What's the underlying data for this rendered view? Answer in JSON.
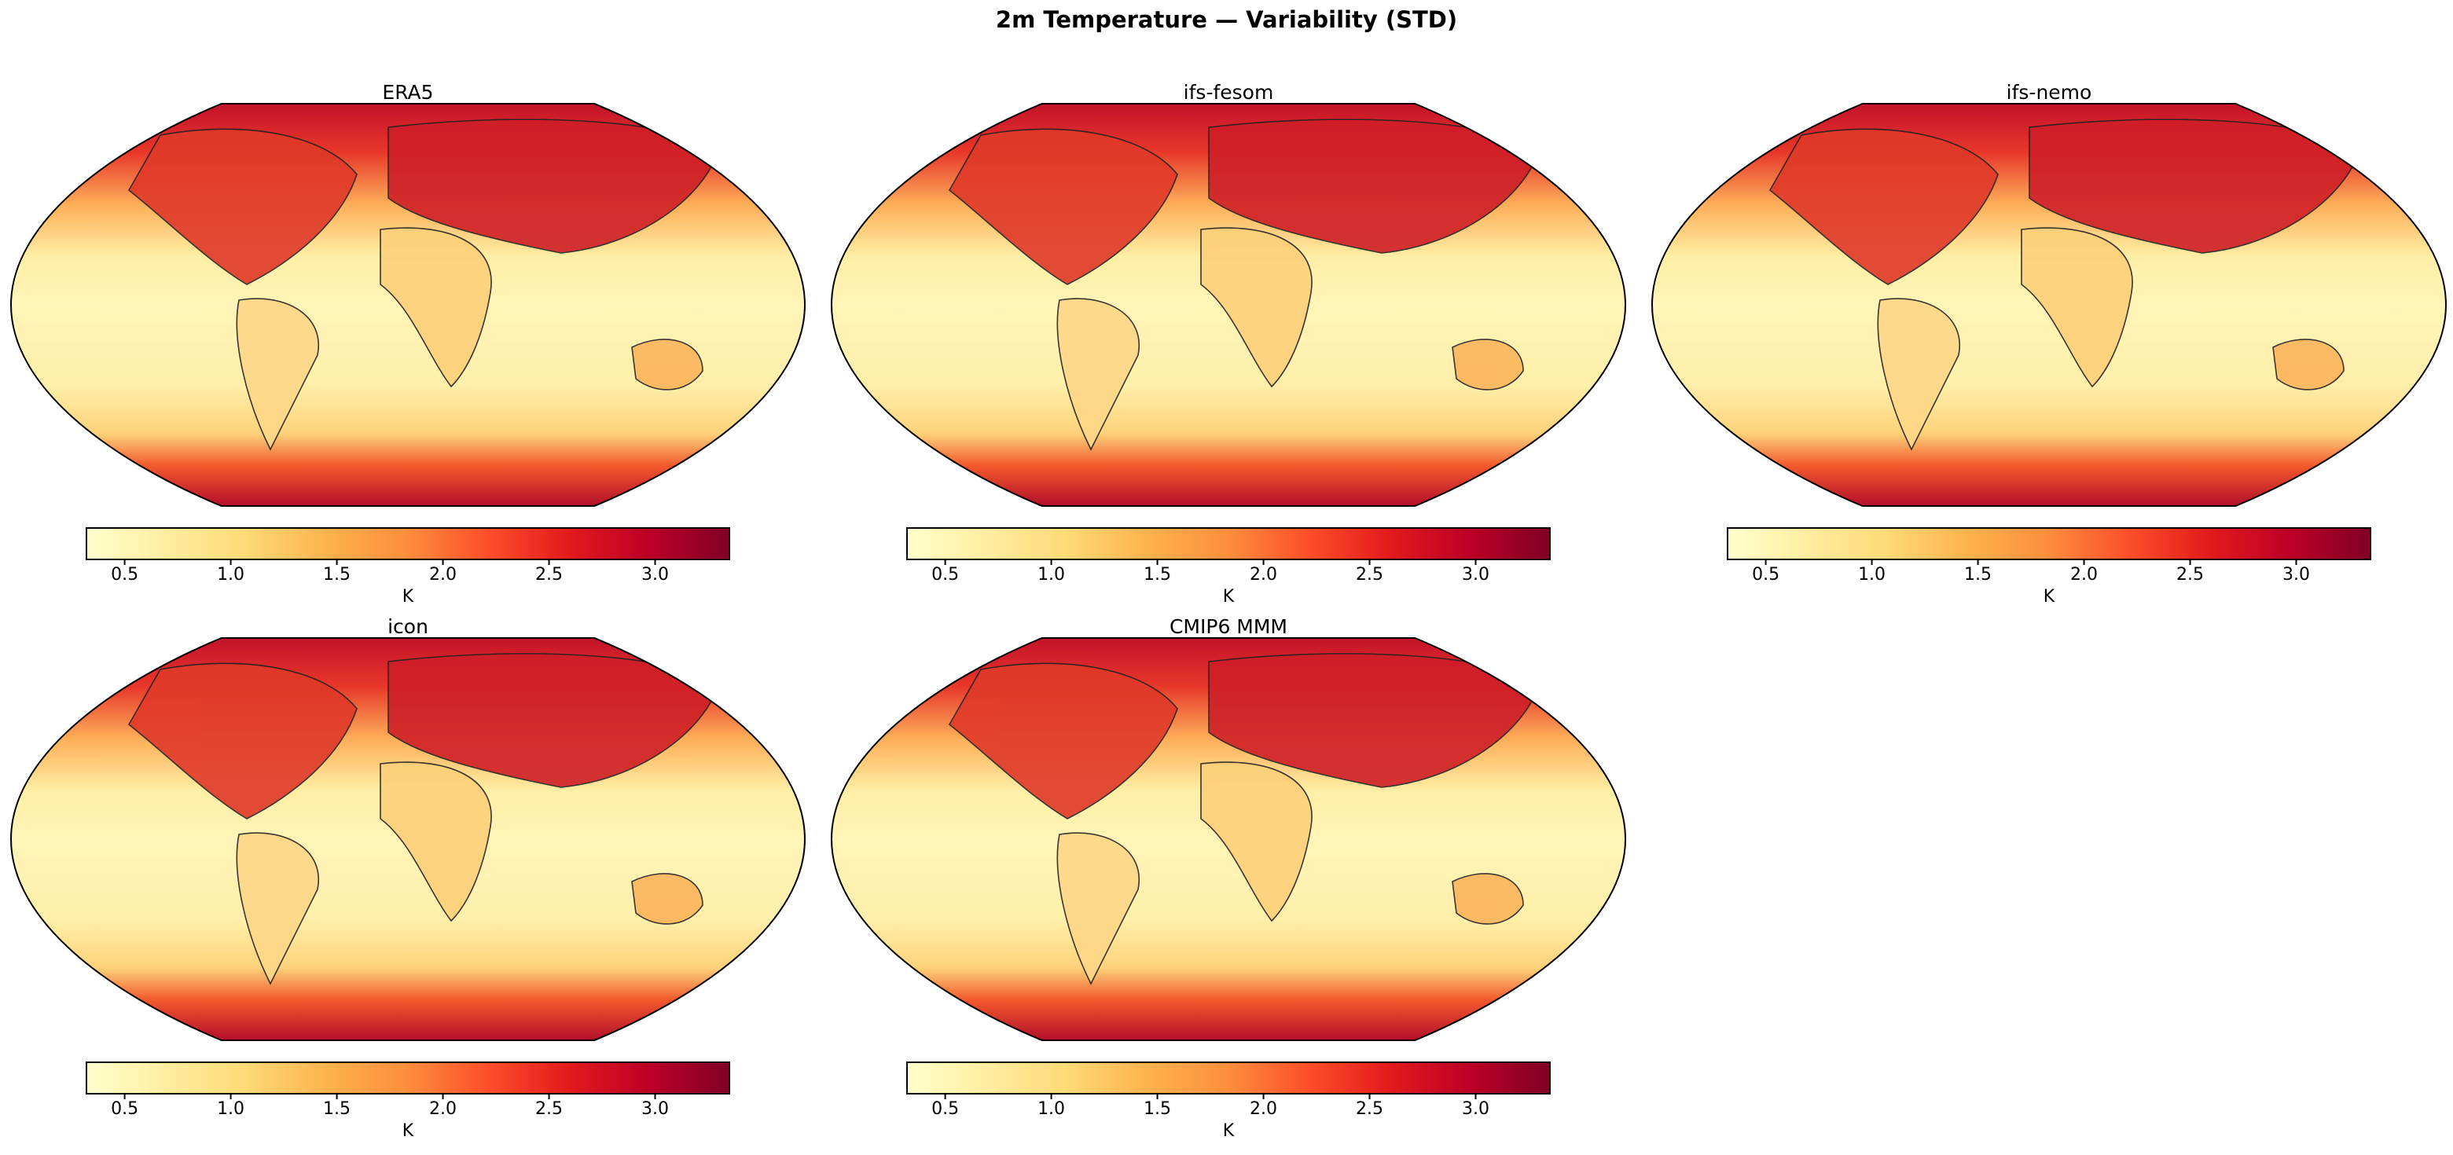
{
  "chart_data": {
    "type": "heatmap",
    "title": "2m Temperature — Variability (STD)",
    "projection": "Robinson",
    "colormap": "YlOrRd",
    "colormap_stops": [
      "#ffffcc",
      "#ffeda0",
      "#fed976",
      "#feb24c",
      "#fd8d3c",
      "#fc4e2a",
      "#e31a1c",
      "#bd0026",
      "#800026"
    ],
    "colorbar": {
      "vmin": 0.32,
      "vmax": 3.35,
      "ticks": [
        "0.5",
        "1.0",
        "1.5",
        "2.0",
        "2.5",
        "3.0"
      ],
      "label": "K"
    },
    "panels": [
      {
        "title": "ERA5"
      },
      {
        "title": "ifs-fesom"
      },
      {
        "title": "ifs-nemo"
      },
      {
        "title": "icon"
      },
      {
        "title": "CMIP6 MMM"
      }
    ]
  }
}
